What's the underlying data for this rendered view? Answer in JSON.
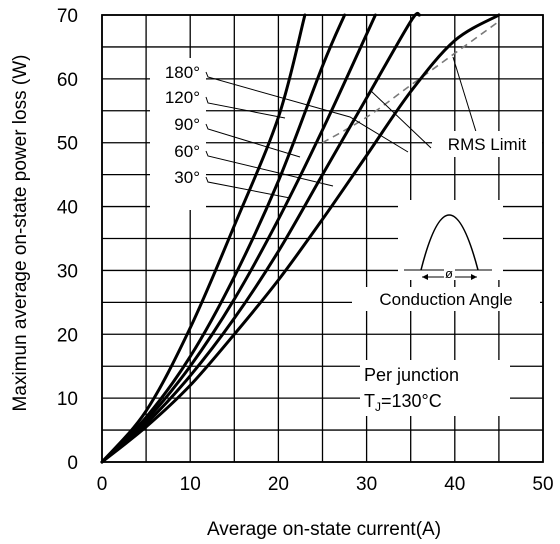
{
  "chart_data": {
    "type": "line",
    "xlabel": "Average on-state current(A)",
    "ylabel": "Maximun average on-state power loss (W)",
    "xlim": [
      0,
      50
    ],
    "ylim": [
      0,
      70
    ],
    "x_ticks": [
      "0",
      "10",
      "20",
      "30",
      "40",
      "50"
    ],
    "y_ticks": [
      "0",
      "10",
      "20",
      "30",
      "40",
      "50",
      "60",
      "70"
    ],
    "grid": true,
    "series": [
      {
        "name": "30°",
        "points": [
          [
            0,
            0
          ],
          [
            5,
            5.5
          ],
          [
            10,
            12
          ],
          [
            15,
            20
          ],
          [
            20,
            28.5
          ],
          [
            25,
            38
          ],
          [
            30,
            48
          ],
          [
            35,
            58
          ],
          [
            40,
            66
          ],
          [
            45,
            70
          ]
        ]
      },
      {
        "name": "60°",
        "points": [
          [
            0,
            0
          ],
          [
            5,
            6
          ],
          [
            10,
            13.5
          ],
          [
            15,
            22.5
          ],
          [
            20,
            33
          ],
          [
            25,
            45
          ],
          [
            30,
            57
          ],
          [
            35,
            69
          ],
          [
            36,
            70
          ]
        ]
      },
      {
        "name": "90°",
        "points": [
          [
            0,
            0
          ],
          [
            5,
            6.5
          ],
          [
            10,
            15
          ],
          [
            15,
            25.5
          ],
          [
            20,
            38
          ],
          [
            25,
            52
          ],
          [
            30,
            67
          ],
          [
            31,
            70
          ]
        ]
      },
      {
        "name": "120°",
        "points": [
          [
            0,
            0
          ],
          [
            5,
            7
          ],
          [
            10,
            16.5
          ],
          [
            15,
            29
          ],
          [
            20,
            44
          ],
          [
            25,
            62
          ],
          [
            27.5,
            70
          ]
        ]
      },
      {
        "name": "180°",
        "points": [
          [
            0,
            0
          ],
          [
            5,
            8
          ],
          [
            10,
            21
          ],
          [
            15,
            37
          ],
          [
            20,
            54
          ],
          [
            23,
            70
          ]
        ]
      }
    ],
    "rms_limit": {
      "name": "RMS Limit",
      "points": [
        [
          25,
          50
        ],
        [
          30,
          54
        ],
        [
          35,
          59
        ],
        [
          40,
          64
        ],
        [
          45,
          69
        ]
      ]
    },
    "annotations": {
      "conduction_angle": "Conduction Angle",
      "phi": "ø",
      "per_junction": "Per junction",
      "tj_prefix": "T",
      "tj_sub": "J",
      "tj_value": "=130°C"
    }
  }
}
